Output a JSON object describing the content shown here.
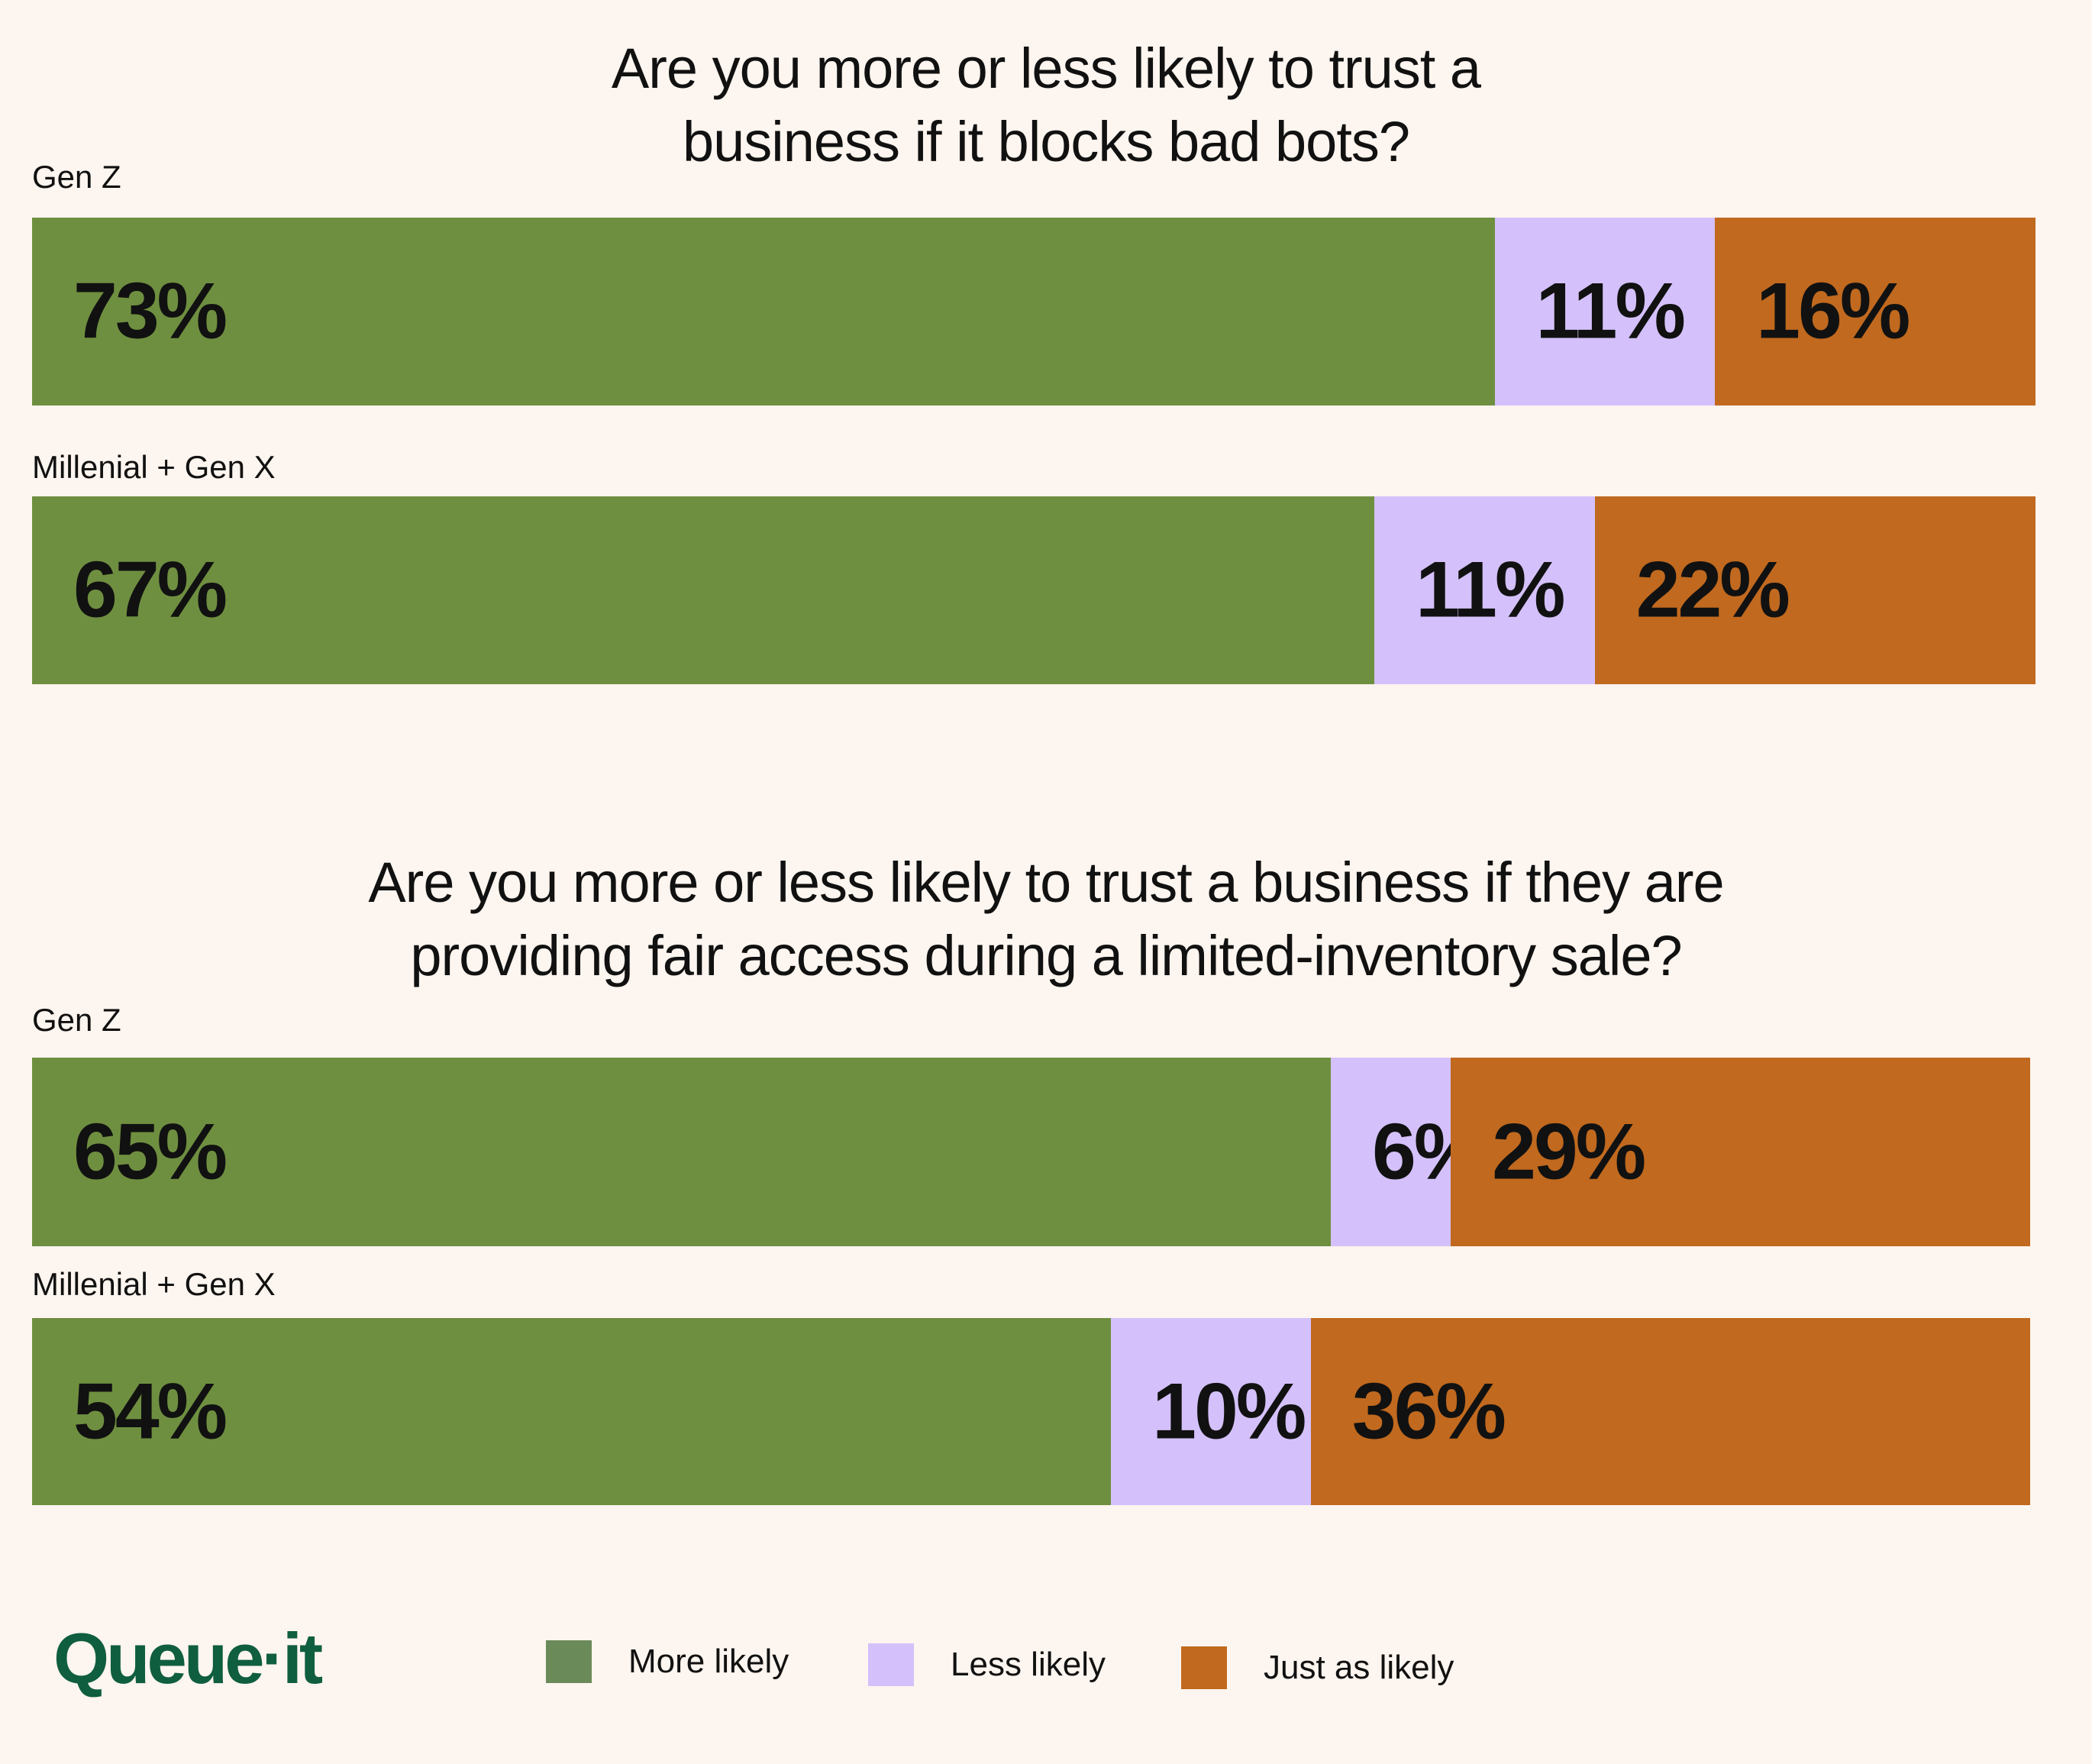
{
  "colors": {
    "more": "#6f8f40",
    "less": "#d4c1fb",
    "same": "#c0691f",
    "legend_more": "#6b8a5a",
    "logo": "#0f5e3f",
    "background": "#fdf5ef"
  },
  "logo": "Queue·it",
  "chart_data": [
    {
      "type": "bar",
      "orientation": "horizontal",
      "stacked": true,
      "title_lines": [
        "Are you more or less likely to trust a",
        "business if it blocks bad bots?"
      ],
      "categories": [
        "Gen Z",
        "Millenial + Gen X"
      ],
      "series": [
        {
          "name": "More likely",
          "values": [
            73,
            67
          ]
        },
        {
          "name": "Less likely",
          "values": [
            11,
            11
          ]
        },
        {
          "name": "Just as likely",
          "values": [
            16,
            22
          ]
        }
      ],
      "labels": [
        [
          "73%",
          "11%",
          "16%"
        ],
        [
          "67%",
          "11%",
          "22%"
        ]
      ],
      "xlim": [
        0,
        100
      ]
    },
    {
      "type": "bar",
      "orientation": "horizontal",
      "stacked": true,
      "title_lines": [
        "Are you more or less likely to trust a business if they are",
        "providing fair access during a limited-inventory sale?"
      ],
      "categories": [
        "Gen Z",
        "Millenial + Gen X"
      ],
      "series": [
        {
          "name": "More likely",
          "values": [
            65,
            54
          ]
        },
        {
          "name": "Less likely",
          "values": [
            6,
            10
          ]
        },
        {
          "name": "Just as likely",
          "values": [
            29,
            36
          ]
        }
      ],
      "labels": [
        [
          "65%",
          "6%",
          "29%"
        ],
        [
          "54%",
          "10%",
          "36%"
        ]
      ],
      "xlim": [
        0,
        100
      ]
    }
  ],
  "legend": {
    "position": "bottom",
    "items": [
      "More likely",
      "Less likely",
      "Just as likely"
    ]
  }
}
